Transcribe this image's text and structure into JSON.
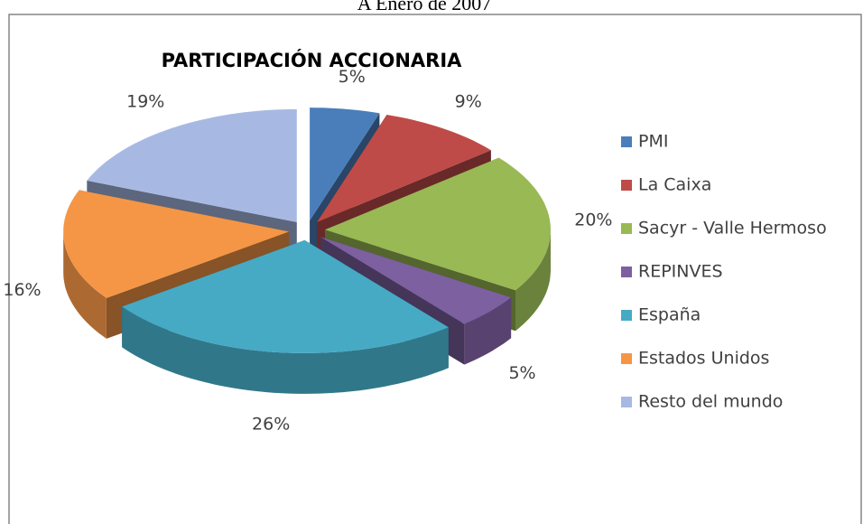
{
  "chart_data": {
    "type": "pie",
    "subtitle": "A Enero de 2007",
    "title": "PARTICIPACIÓN ACCIONARIA",
    "categories": [
      "PMI",
      "La Caixa",
      "Sacyr - Valle Hermoso",
      "REPINVES",
      "España",
      "Estados Unidos",
      "Resto del mundo"
    ],
    "values": [
      5,
      9,
      20,
      5,
      26,
      16,
      19
    ],
    "value_labels": [
      "5%",
      "9%",
      "20%",
      "5%",
      "26%",
      "16%",
      "19%"
    ],
    "colors": [
      "#4a7ebb",
      "#be4b48",
      "#98b954",
      "#7d60a0",
      "#46aac5",
      "#f59646",
      "#a7b9e3"
    ],
    "legend": "right"
  }
}
